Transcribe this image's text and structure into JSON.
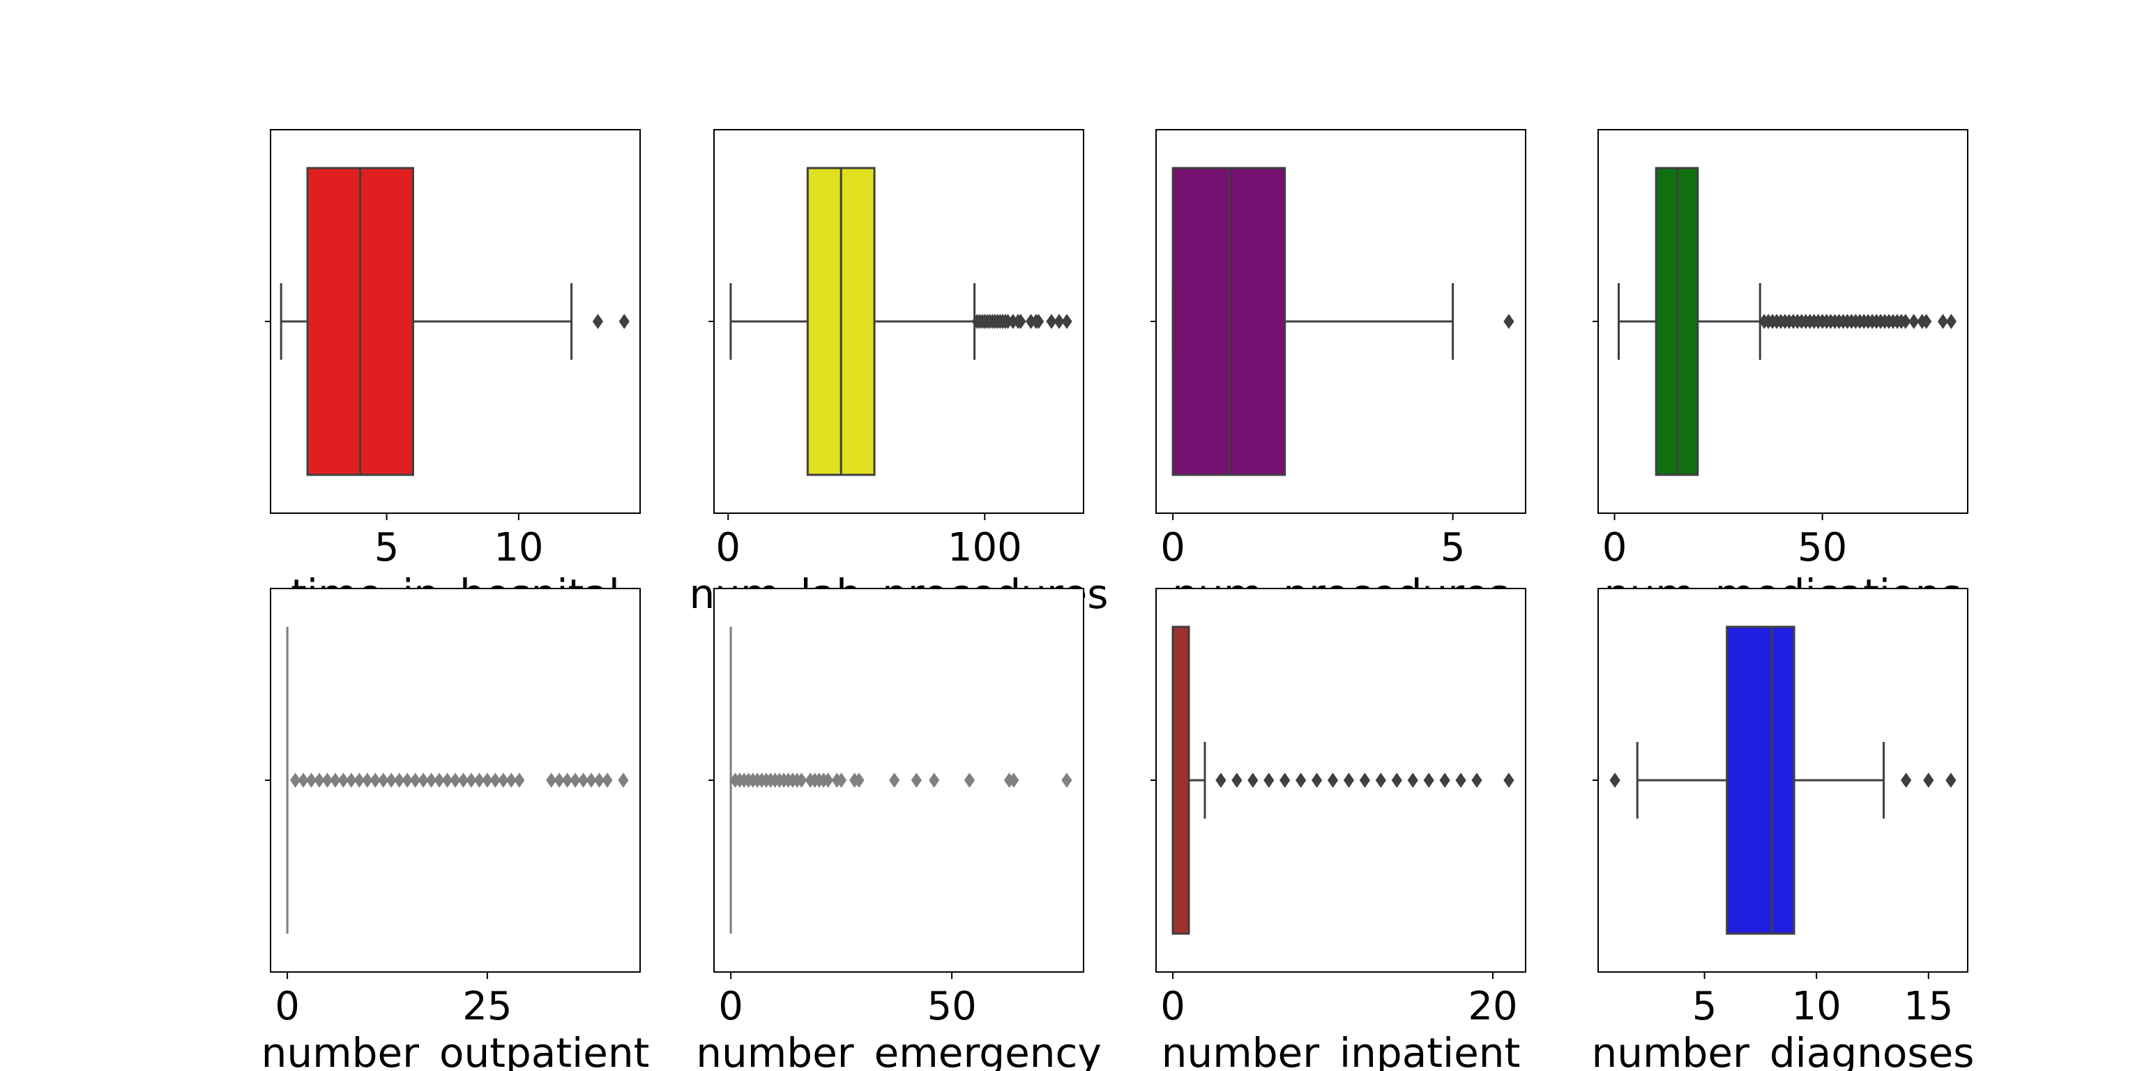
{
  "chart_data": [
    {
      "type": "box",
      "xlabel": "time_in_hospital",
      "color": "#e02020",
      "xlim": [
        0.6,
        14.6
      ],
      "ticks": [
        5,
        10
      ],
      "whisker_low": 1,
      "q1": 2,
      "median": 4,
      "q3": 6,
      "whisker_high": 12,
      "outliers": [
        13,
        14
      ]
    },
    {
      "type": "box",
      "xlabel": "num_lab_procedures",
      "color": "#e0e020",
      "xlim": [
        -5.5,
        138.5
      ],
      "ticks": [
        0,
        100
      ],
      "whisker_low": 1,
      "q1": 31,
      "median": 44,
      "q3": 57,
      "whisker_high": 96,
      "outliers": [
        97,
        98,
        99,
        100,
        101,
        102,
        103,
        104,
        105,
        106,
        107,
        108,
        109,
        111,
        113,
        114,
        118,
        120,
        121,
        126,
        129,
        132
      ]
    },
    {
      "type": "box",
      "xlabel": "num_procedures",
      "color": "#751070",
      "xlim": [
        -0.3,
        6.3
      ],
      "ticks": [
        0,
        5
      ],
      "whisker_low": 0,
      "q1": 0,
      "median": 1,
      "q3": 2,
      "whisker_high": 5,
      "outliers": [
        6
      ]
    },
    {
      "type": "box",
      "xlabel": "num_medications",
      "color": "#107010",
      "xlim": [
        -3.95,
        84.95
      ],
      "ticks": [
        0,
        50
      ],
      "whisker_low": 1,
      "q1": 10,
      "median": 15,
      "q3": 20,
      "whisker_high": 35,
      "outliers": [
        36,
        37,
        38,
        39,
        40,
        41,
        42,
        43,
        44,
        45,
        46,
        47,
        48,
        49,
        50,
        51,
        52,
        53,
        54,
        55,
        56,
        57,
        58,
        59,
        60,
        61,
        62,
        63,
        64,
        65,
        66,
        67,
        68,
        69,
        70,
        72,
        74,
        75,
        79,
        81
      ]
    },
    {
      "type": "box",
      "xlabel": "number_outpatient",
      "color": "#808080",
      "xlim": [
        -2.1,
        44.1
      ],
      "ticks": [
        0,
        25
      ],
      "whisker_low": 0,
      "q1": 0,
      "median": 0,
      "q3": 0,
      "whisker_high": 0,
      "outliers": [
        1,
        2,
        3,
        4,
        5,
        6,
        7,
        8,
        9,
        10,
        11,
        12,
        13,
        14,
        15,
        16,
        17,
        18,
        19,
        20,
        21,
        22,
        23,
        24,
        25,
        26,
        27,
        28,
        29,
        33,
        34,
        35,
        36,
        37,
        38,
        39,
        40,
        42
      ]
    },
    {
      "type": "box",
      "xlabel": "number_emergency",
      "color": "#808080",
      "xlim": [
        -3.8,
        79.8
      ],
      "ticks": [
        0,
        50
      ],
      "whisker_low": 0,
      "q1": 0,
      "median": 0,
      "q3": 0,
      "whisker_high": 0,
      "outliers": [
        1,
        2,
        3,
        4,
        5,
        6,
        7,
        8,
        9,
        10,
        11,
        12,
        13,
        14,
        15,
        16,
        18,
        19,
        20,
        21,
        22,
        24,
        25,
        28,
        29,
        37,
        42,
        46,
        54,
        63,
        64,
        76
      ]
    },
    {
      "type": "box",
      "xlabel": "number_inpatient",
      "color": "#a03030",
      "xlim": [
        -1.05,
        22.05
      ],
      "ticks": [
        0,
        20
      ],
      "whisker_low": 0,
      "q1": 0,
      "median": 0,
      "q3": 1,
      "whisker_high": 2,
      "outliers": [
        3,
        4,
        5,
        6,
        7,
        8,
        9,
        10,
        11,
        12,
        13,
        14,
        15,
        16,
        17,
        18,
        19,
        21
      ]
    },
    {
      "type": "box",
      "xlabel": "number_diagnoses",
      "color": "#2020e0",
      "xlim": [
        0.25,
        16.75
      ],
      "ticks": [
        5,
        10,
        15
      ],
      "whisker_low": 2,
      "q1": 6,
      "median": 8,
      "q3": 9,
      "whisker_high": 13,
      "outliers": [
        1,
        14,
        15,
        16
      ]
    }
  ]
}
